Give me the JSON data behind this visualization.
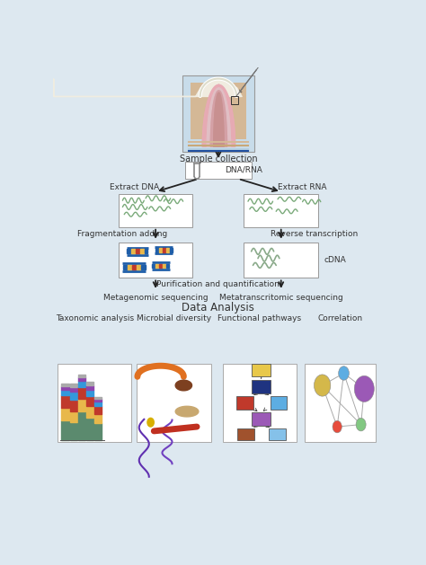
{
  "background_color": "#dde8f0",
  "flow_labels": {
    "sample_collection": "Sample collection",
    "dna_rna": "DNA/RNA",
    "extract_dna": "Extract DNA",
    "extract_rna": "Extract RNA",
    "fragmentation": "Fragmentation adding",
    "reverse_transcription": "Reverse transcription",
    "cdna": "cDNA",
    "purification": "Purification and quantification",
    "metagenomic": "Metagenomic sequencing",
    "metatranscriptomic": "Metatranscritomic sequencing",
    "data_analysis": "Data Analysis"
  },
  "analysis_labels": [
    "Taxonomic analysis",
    "Microbial diversity",
    "Functional pathways",
    "Correlation"
  ],
  "text_color": "#333333",
  "label_fontsize": 7.0,
  "small_fontsize": 6.5,
  "data_analysis_fontsize": 8.5,
  "analysis_label_fontsize": 6.5,
  "arrow_color": "#222222",
  "wavy_color": "#7aaa7a",
  "cdna_color": "#8aaa8a",
  "dna_seg_colors": [
    "#1f5ea8",
    "#e8b84b",
    "#c0392b",
    "#e8b84b",
    "#1f5ea8"
  ],
  "dna_rail_color": "#1f5ea8",
  "bar_seg_colors": [
    "#5b8a6e",
    "#e8b84b",
    "#c0392b",
    "#3498db",
    "#8e44ad",
    "#aaaaaa"
  ],
  "network_colors": {
    "yellow": "#d4b84a",
    "blue": "#5dade2",
    "purple": "#9b59b6",
    "red": "#e74c3c",
    "green": "#82c882"
  },
  "flow_box_colors": {
    "yellow": "#e8c84a",
    "dark_blue": "#1f3380",
    "red": "#c0392b",
    "teal": "#5dade2",
    "purple": "#9b59b6",
    "brown": "#a0522d",
    "light_blue": "#85c1e9"
  }
}
